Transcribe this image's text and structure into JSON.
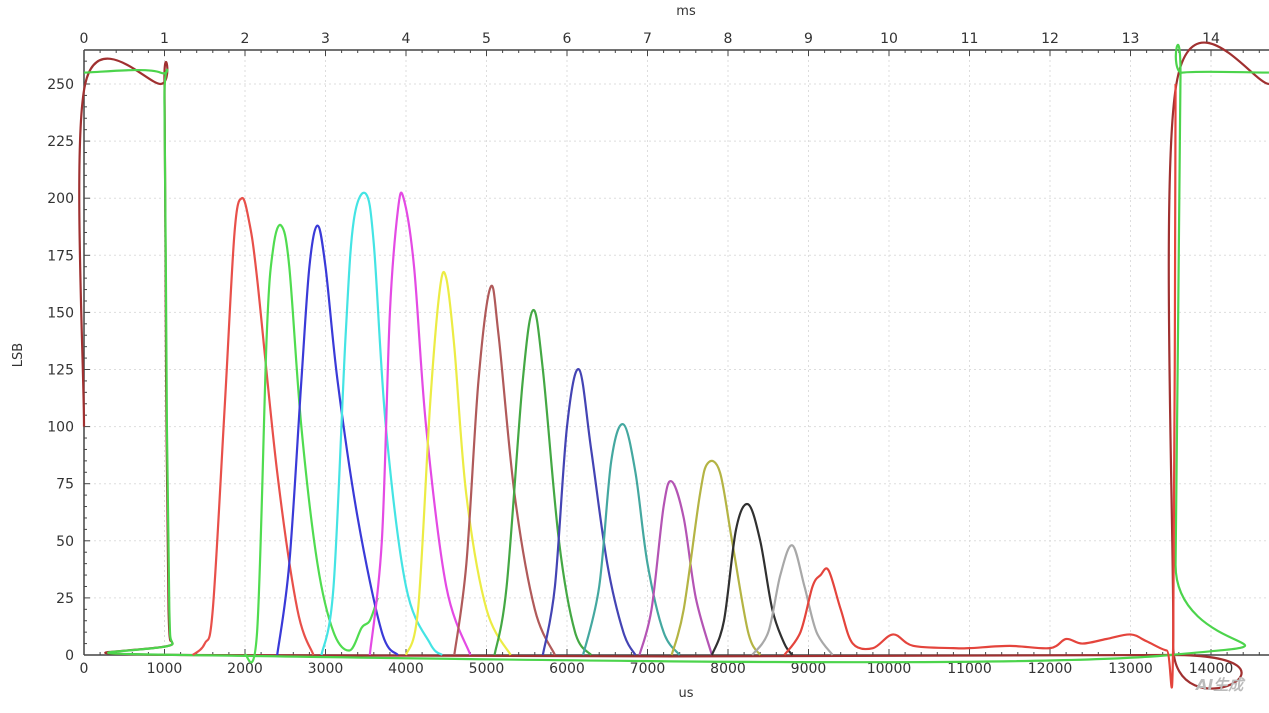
{
  "chart_data": {
    "type": "line",
    "title": "",
    "xlabel": "us",
    "x2label": "ms",
    "ylabel": "LSB",
    "xlim": [
      0,
      14720
    ],
    "ylim": [
      0,
      262
    ],
    "x_ticks": [
      0,
      1000,
      2000,
      3000,
      4000,
      5000,
      6000,
      7000,
      8000,
      9000,
      10000,
      11000,
      12000,
      13000,
      14000
    ],
    "x2_ticks": [
      0,
      1,
      2,
      3,
      4,
      5,
      6,
      7,
      8,
      9,
      10,
      11,
      12,
      13,
      14
    ],
    "y_ticks": [
      0,
      25,
      50,
      75,
      100,
      125,
      150,
      175,
      200,
      225,
      250
    ],
    "grid": true,
    "legend": "none",
    "series": [
      {
        "color": "#a03030",
        "points": [
          [
            0,
            100
          ],
          [
            15,
            250
          ],
          [
            950,
            250
          ],
          [
            1000,
            250
          ],
          [
            1020,
            120
          ],
          [
            1050,
            20
          ],
          [
            1100,
            5
          ],
          [
            1200,
            0
          ],
          [
            13450,
            0
          ],
          [
            13530,
            5
          ],
          [
            13570,
            250
          ],
          [
            14720,
            250
          ]
        ]
      },
      {
        "color": "#4cd44c",
        "points": [
          [
            0,
            255
          ],
          [
            950,
            255
          ],
          [
            1000,
            240
          ],
          [
            1030,
            100
          ],
          [
            1060,
            20
          ],
          [
            1100,
            5
          ],
          [
            1250,
            0
          ],
          [
            13500,
            0
          ],
          [
            13560,
            40
          ],
          [
            13620,
            250
          ],
          [
            13650,
            255
          ],
          [
            14720,
            255
          ]
        ]
      },
      {
        "color": "#e8504a",
        "points": [
          [
            1350,
            0
          ],
          [
            1500,
            5
          ],
          [
            1600,
            20
          ],
          [
            1750,
            110
          ],
          [
            1870,
            185
          ],
          [
            1960,
            200
          ],
          [
            2050,
            190
          ],
          [
            2150,
            165
          ],
          [
            2400,
            80
          ],
          [
            2650,
            20
          ],
          [
            2850,
            0
          ]
        ]
      },
      {
        "color": "#50dc50",
        "points": [
          [
            2000,
            0
          ],
          [
            2150,
            10
          ],
          [
            2270,
            140
          ],
          [
            2350,
            178
          ],
          [
            2450,
            188
          ],
          [
            2550,
            170
          ],
          [
            2700,
            100
          ],
          [
            2900,
            40
          ],
          [
            3100,
            10
          ],
          [
            3300,
            2
          ],
          [
            3450,
            12
          ],
          [
            3550,
            15
          ],
          [
            3650,
            25
          ]
        ]
      },
      {
        "color": "#3a3ad8",
        "points": [
          [
            2400,
            0
          ],
          [
            2550,
            40
          ],
          [
            2700,
            120
          ],
          [
            2800,
            170
          ],
          [
            2900,
            188
          ],
          [
            3000,
            170
          ],
          [
            3150,
            120
          ],
          [
            3400,
            60
          ],
          [
            3700,
            10
          ],
          [
            3900,
            0
          ]
        ]
      },
      {
        "color": "#44e4e4",
        "points": [
          [
            2950,
            0
          ],
          [
            3100,
            30
          ],
          [
            3250,
            140
          ],
          [
            3350,
            190
          ],
          [
            3500,
            202
          ],
          [
            3600,
            180
          ],
          [
            3750,
            100
          ],
          [
            4000,
            30
          ],
          [
            4300,
            5
          ],
          [
            4450,
            0
          ]
        ]
      },
      {
        "color": "#e44ae4",
        "points": [
          [
            3550,
            0
          ],
          [
            3700,
            50
          ],
          [
            3800,
            150
          ],
          [
            3900,
            195
          ],
          [
            3970,
            200
          ],
          [
            4100,
            170
          ],
          [
            4250,
            100
          ],
          [
            4500,
            30
          ],
          [
            4800,
            0
          ]
        ]
      },
      {
        "color": "#ecec44",
        "points": [
          [
            4000,
            0
          ],
          [
            4150,
            20
          ],
          [
            4300,
            110
          ],
          [
            4420,
            160
          ],
          [
            4500,
            165
          ],
          [
            4600,
            135
          ],
          [
            4750,
            70
          ],
          [
            5000,
            20
          ],
          [
            5300,
            0
          ]
        ]
      },
      {
        "color": "#b05a5a",
        "points": [
          [
            4600,
            0
          ],
          [
            4750,
            40
          ],
          [
            4900,
            120
          ],
          [
            5050,
            161
          ],
          [
            5150,
            140
          ],
          [
            5350,
            70
          ],
          [
            5600,
            20
          ],
          [
            5850,
            0
          ]
        ]
      },
      {
        "color": "#44a844",
        "points": [
          [
            5100,
            0
          ],
          [
            5250,
            30
          ],
          [
            5450,
            120
          ],
          [
            5580,
            151
          ],
          [
            5700,
            125
          ],
          [
            5900,
            50
          ],
          [
            6100,
            10
          ],
          [
            6300,
            0
          ]
        ]
      },
      {
        "color": "#4444b4",
        "points": [
          [
            5700,
            0
          ],
          [
            5850,
            30
          ],
          [
            6000,
            100
          ],
          [
            6150,
            125
          ],
          [
            6300,
            90
          ],
          [
            6500,
            40
          ],
          [
            6700,
            10
          ],
          [
            6850,
            0
          ]
        ]
      },
      {
        "color": "#44a8a0",
        "points": [
          [
            6200,
            0
          ],
          [
            6400,
            30
          ],
          [
            6550,
            85
          ],
          [
            6700,
            101
          ],
          [
            6850,
            80
          ],
          [
            7000,
            40
          ],
          [
            7200,
            10
          ],
          [
            7400,
            0
          ]
        ]
      },
      {
        "color": "#b454b4",
        "points": [
          [
            6900,
            0
          ],
          [
            7050,
            20
          ],
          [
            7200,
            65
          ],
          [
            7300,
            76
          ],
          [
            7450,
            60
          ],
          [
            7600,
            25
          ],
          [
            7800,
            0
          ]
        ]
      },
      {
        "color": "#b4b444",
        "points": [
          [
            7300,
            0
          ],
          [
            7450,
            20
          ],
          [
            7650,
            70
          ],
          [
            7750,
            84
          ],
          [
            7900,
            80
          ],
          [
            8050,
            50
          ],
          [
            8250,
            10
          ],
          [
            8400,
            0
          ]
        ]
      },
      {
        "color": "#303030",
        "points": [
          [
            7800,
            0
          ],
          [
            7950,
            15
          ],
          [
            8100,
            55
          ],
          [
            8250,
            66
          ],
          [
            8400,
            50
          ],
          [
            8550,
            20
          ],
          [
            8700,
            5
          ],
          [
            8800,
            0
          ]
        ]
      },
      {
        "color": "#a8a8a8",
        "points": [
          [
            8300,
            0
          ],
          [
            8500,
            10
          ],
          [
            8650,
            35
          ],
          [
            8800,
            48
          ],
          [
            8950,
            30
          ],
          [
            9100,
            10
          ],
          [
            9300,
            0
          ]
        ]
      },
      {
        "color": "#e4443c",
        "points": [
          [
            8700,
            0
          ],
          [
            8900,
            10
          ],
          [
            9050,
            30
          ],
          [
            9150,
            35
          ],
          [
            9250,
            37
          ],
          [
            9400,
            20
          ],
          [
            9550,
            5
          ],
          [
            9800,
            3
          ],
          [
            10050,
            9
          ],
          [
            10300,
            4
          ],
          [
            10800,
            3
          ],
          [
            11000,
            3
          ],
          [
            11500,
            4
          ],
          [
            12000,
            3
          ],
          [
            12200,
            7
          ],
          [
            12400,
            5
          ],
          [
            12700,
            7
          ],
          [
            13000,
            9
          ],
          [
            13200,
            6
          ],
          [
            13450,
            2
          ],
          [
            13530,
            5
          ],
          [
            13560,
            250
          ]
        ]
      }
    ]
  },
  "watermark": "AI生成"
}
